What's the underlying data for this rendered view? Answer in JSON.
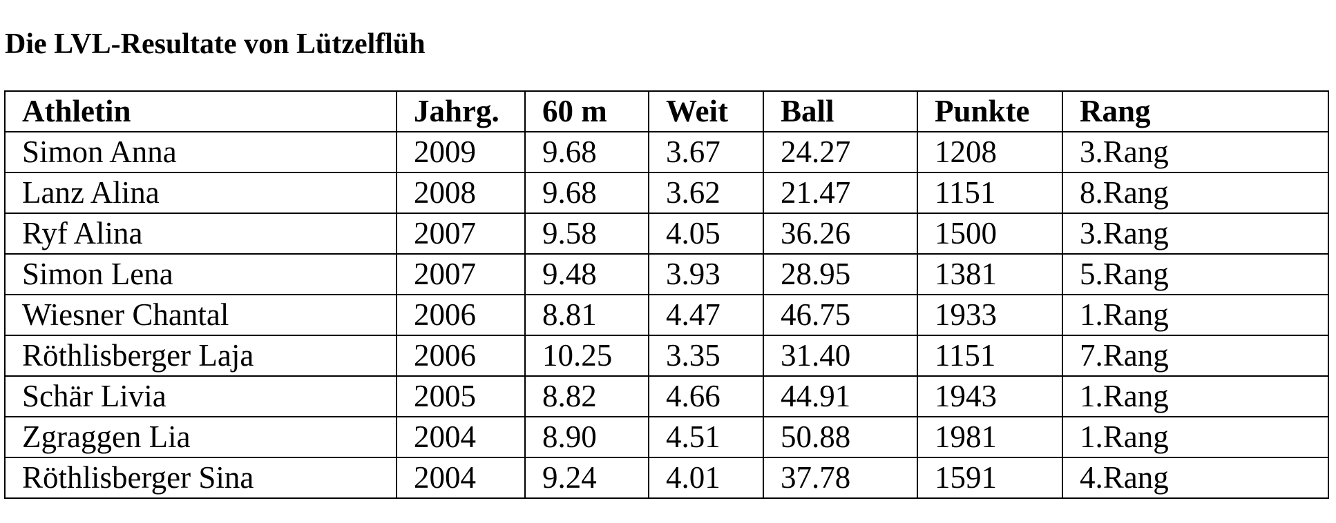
{
  "header": {
    "title": "Die LVL-Resultate von Lützelflüh"
  },
  "table": {
    "columns": [
      "Athletin",
      "Jahrg.",
      "60 m",
      "Weit",
      "Ball",
      "Punkte",
      "Rang"
    ],
    "rows": [
      [
        "Simon Anna",
        "2009",
        "9.68",
        "3.67",
        "24.27",
        "1208",
        "3.Rang"
      ],
      [
        "Lanz Alina",
        "2008",
        "9.68",
        "3.62",
        "21.47",
        "1151",
        "8.Rang"
      ],
      [
        "Ryf Alina",
        "2007",
        "9.58",
        "4.05",
        "36.26",
        "1500",
        "3.Rang"
      ],
      [
        "Simon Lena",
        "2007",
        "9.48",
        "3.93",
        "28.95",
        "1381",
        "5.Rang"
      ],
      [
        "Wiesner Chantal",
        "2006",
        "8.81",
        "4.47",
        "46.75",
        "1933",
        "1.Rang"
      ],
      [
        "Röthlisberger Laja",
        "2006",
        "10.25",
        "3.35",
        "31.40",
        "1151",
        "7.Rang"
      ],
      [
        "Schär Livia",
        "2005",
        "8.82",
        "4.66",
        "44.91",
        "1943",
        "1.Rang"
      ],
      [
        "Zgraggen Lia",
        "2004",
        "8.90",
        "4.51",
        "50.88",
        "1981",
        "1.Rang"
      ],
      [
        "Röthlisberger Sina",
        "2004",
        "9.24",
        "4.01",
        "37.78",
        "1591",
        "4.Rang"
      ]
    ]
  }
}
